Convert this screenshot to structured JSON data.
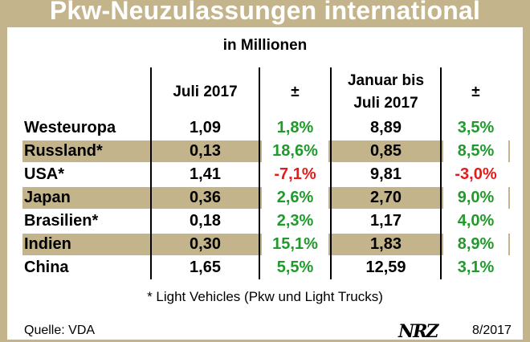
{
  "title": "Pkw-Neuzulassungen international",
  "subtitle": "in Millionen",
  "headers": {
    "col1": "Juli 2017",
    "col2": "±",
    "col3_line1": "Januar bis",
    "col3_line2": "Juli 2017",
    "col4": "±"
  },
  "chart_data": {
    "type": "table",
    "title": "Pkw-Neuzulassungen international",
    "subtitle": "in Millionen",
    "columns": [
      "Juli 2017",
      "±",
      "Januar bis Juli 2017",
      "±"
    ],
    "rows": [
      {
        "country": "Westeuropa",
        "juli": "1,09",
        "juli_change": "1,8%",
        "ytd": "8,89",
        "ytd_change": "3,5%"
      },
      {
        "country": "Russland*",
        "juli": "0,13",
        "juli_change": "18,6%",
        "ytd": "0,85",
        "ytd_change": "8,5%"
      },
      {
        "country": "USA*",
        "juli": "1,41",
        "juli_change": "-7,1%",
        "ytd": "9,81",
        "ytd_change": "-3,0%"
      },
      {
        "country": "Japan",
        "juli": "0,36",
        "juli_change": "2,6%",
        "ytd": "2,70",
        "ytd_change": "9,0%"
      },
      {
        "country": "Brasilien*",
        "juli": "0,18",
        "juli_change": "2,3%",
        "ytd": "1,17",
        "ytd_change": "4,0%"
      },
      {
        "country": "Indien",
        "juli": "0,30",
        "juli_change": "15,1%",
        "ytd": "1,83",
        "ytd_change": "8,9%"
      },
      {
        "country": "China",
        "juli": "1,65",
        "juli_change": "5,5%",
        "ytd": "12,59",
        "ytd_change": "3,1%"
      }
    ]
  },
  "footnote": "* Light Vehicles (Pkw und Light Trucks)",
  "source": "Quelle: VDA",
  "logo": "NRZ",
  "date": "8/2017",
  "colors": {
    "band": "#c4b48c",
    "positive": "#1f9a2b",
    "negative": "#e51b1b"
  }
}
